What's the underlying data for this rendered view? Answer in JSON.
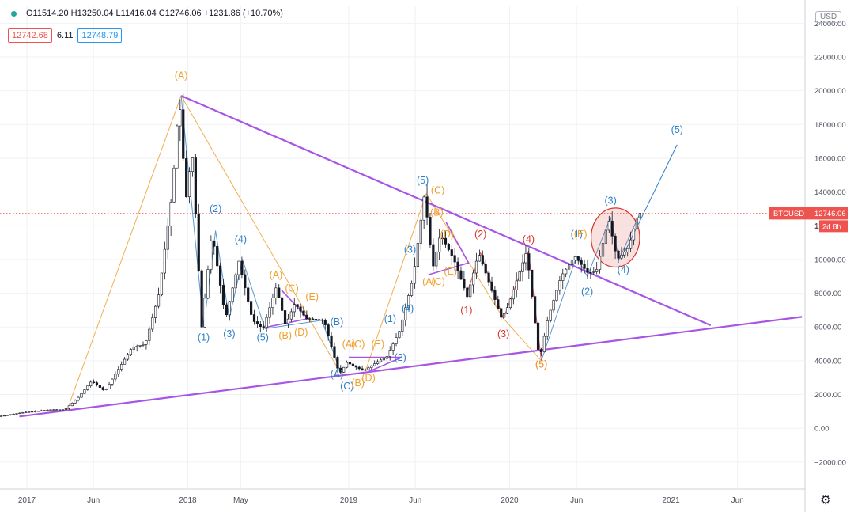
{
  "header": {
    "ohlc": "O11514.20  H13250.04  L11416.04  C12746.06  +1231.86 (+10.70%)",
    "bid": "12742.68",
    "spread": "6.11",
    "ask": "12748.79",
    "currency": "USD"
  },
  "price_tag": {
    "symbol": "BTCUSD",
    "price": "12746.06",
    "countdown": "2d 8h",
    "partial_tick": "12"
  },
  "colors": {
    "candle": "#131722",
    "projection": "#2f80c8",
    "orange": "#f0a030",
    "red": "#d9342b",
    "purple": "#a855e6",
    "price_tag": "#ef5350"
  },
  "icons": {
    "settings": "gear-icon"
  },
  "chart_data": {
    "type": "line",
    "title": "",
    "xlabel": "",
    "ylabel": "",
    "x_axis_ticks": [
      "2017",
      "Jun",
      "2018",
      "May",
      "2019",
      "Jun",
      "2020",
      "Jun",
      "2021",
      "Jun"
    ],
    "y_axis_ticks": [
      "24000.00",
      "22000.00",
      "20000.00",
      "18000.00",
      "16000.00",
      "14000.00",
      "12000.00",
      "10000.00",
      "8000.00",
      "6000.00",
      "4000.00",
      "2000.00",
      "0.00",
      "−2000.00"
    ],
    "ylim": [
      -3600,
      25000
    ],
    "xlim": [
      "2016-11-01",
      "2021-11-01"
    ],
    "grid": true,
    "series": [
      {
        "points": [
          [
            "2016-11-01",
            700
          ],
          [
            "2017-01-01",
            950
          ],
          [
            "2017-03-01",
            1100
          ],
          [
            "2017-04-01",
            1100
          ],
          [
            "2017-05-01",
            1800
          ],
          [
            "2017-06-01",
            2800
          ],
          [
            "2017-07-01",
            2200
          ],
          [
            "2017-08-01",
            3500
          ],
          [
            "2017-09-01",
            4800
          ],
          [
            "2017-10-01",
            5000
          ],
          [
            "2017-11-01",
            8000
          ],
          [
            "2017-12-01",
            14000
          ],
          [
            "2017-12-17",
            19700
          ],
          [
            "2018-01-01",
            13500
          ],
          [
            "2018-01-15",
            16500
          ],
          [
            "2018-02-06",
            6000
          ],
          [
            "2018-03-01",
            11600
          ],
          [
            "2018-04-01",
            6500
          ],
          [
            "2018-05-01",
            9900
          ],
          [
            "2018-06-01",
            6400
          ],
          [
            "2018-06-25",
            5900
          ],
          [
            "2018-07-25",
            8400
          ],
          [
            "2018-08-15",
            6100
          ],
          [
            "2018-09-05",
            7400
          ],
          [
            "2018-10-01",
            6500
          ],
          [
            "2018-11-10",
            6400
          ],
          [
            "2018-12-15",
            3200
          ],
          [
            "2019-01-01",
            3900
          ],
          [
            "2019-02-08",
            3400
          ],
          [
            "2019-03-15",
            4000
          ],
          [
            "2019-04-01",
            4200
          ],
          [
            "2019-05-01",
            5800
          ],
          [
            "2019-06-01",
            9000
          ],
          [
            "2019-06-26",
            13900
          ],
          [
            "2019-07-15",
            9500
          ],
          [
            "2019-08-01",
            11500
          ],
          [
            "2019-09-01",
            10000
          ],
          [
            "2019-10-01",
            7800
          ],
          [
            "2019-10-27",
            10400
          ],
          [
            "2019-12-18",
            6500
          ],
          [
            "2020-01-01",
            7200
          ],
          [
            "2020-02-13",
            10500
          ],
          [
            "2020-03-13",
            4000
          ],
          [
            "2020-04-01",
            6500
          ],
          [
            "2020-05-01",
            9000
          ],
          [
            "2020-06-01",
            10200
          ],
          [
            "2020-07-01",
            9200
          ],
          [
            "2020-07-20",
            9300
          ],
          [
            "2020-08-17",
            12400
          ],
          [
            "2020-09-05",
            10000
          ],
          [
            "2020-09-20",
            10400
          ],
          [
            "2020-10-01",
            10700
          ],
          [
            "2020-10-23",
            12750
          ]
        ]
      }
    ],
    "trendlines": {
      "upper_purple": [
        [
          "2017-12-17",
          19700
        ],
        [
          "2021-04-01",
          6100
        ]
      ],
      "lower_purple": [
        [
          "2016-12-15",
          700
        ],
        [
          "2021-10-25",
          6600
        ]
      ],
      "projection_blue": [
        [
          "2020-09-10",
          10000
        ],
        [
          "2021-01-15",
          16800
        ]
      ],
      "orange_zigzag_large": [
        [
          "2017-04-01",
          1000
        ],
        [
          "2017-12-17",
          19700
        ],
        [
          "2018-12-15",
          3200
        ]
      ],
      "orange_zigzag_2019": [
        [
          "2019-02-08",
          3400
        ],
        [
          "2019-06-26",
          13900
        ],
        [
          "2019-12-18",
          6500
        ],
        [
          "2020-03-13",
          4000
        ]
      ],
      "red_zigzag_2019_2020": [
        [
          "2019-09-25",
          7900
        ],
        [
          "2019-10-27",
          10400
        ],
        [
          "2019-12-18",
          6500
        ],
        [
          "2020-02-13",
          10500
        ],
        [
          "2020-03-13",
          4000
        ]
      ],
      "blue_primary": [
        [
          "2017-12-17",
          19700
        ],
        [
          "2018-02-06",
          6000
        ],
        [
          "2018-03-05",
          11700
        ],
        [
          "2018-04-05",
          6500
        ],
        [
          "2018-05-05",
          10000
        ],
        [
          "2018-06-25",
          5900
        ],
        [
          "2018-11-01",
          6400
        ],
        [
          "2018-12-15",
          3200
        ]
      ],
      "blue_primary_2020": [
        [
          "2020-03-13",
          4000
        ],
        [
          "2020-06-01",
          10200
        ],
        [
          "2020-06-25",
          9000
        ],
        [
          "2020-08-17",
          12500
        ],
        [
          "2020-09-05",
          10000
        ],
        [
          "2020-10-23",
          12750
        ]
      ],
      "triangle_2018": [
        [
          "2018-07-01",
          6000
        ],
        [
          "2018-10-01",
          6500
        ],
        [
          "2018-08-01",
          8200
        ]
      ],
      "triangle_2019": [
        [
          "2019-02-10",
          3300
        ],
        [
          "2019-05-01",
          4200
        ],
        [
          "2019-01-01",
          4200
        ]
      ],
      "triangle_2019b": [
        [
          "2019-07-01",
          9100
        ],
        [
          "2019-09-30",
          9800
        ],
        [
          "2019-08-10",
          12200
        ]
      ]
    },
    "highlight_ellipse": {
      "center": [
        "2020-08-28",
        11300
      ],
      "rx_days": 55,
      "ry_value": 1750
    },
    "price_line": 12746.06,
    "annotations": [
      {
        "text": "(A)",
        "x": "2017-12-17",
        "y": 20700,
        "color": "orange"
      },
      {
        "text": "(1)",
        "x": "2018-02-06",
        "y": 5200,
        "color": "blue"
      },
      {
        "text": "(2)",
        "x": "2018-03-05",
        "y": 12800,
        "color": "blue"
      },
      {
        "text": "(3)",
        "x": "2018-04-05",
        "y": 5400,
        "color": "blue"
      },
      {
        "text": "(4)",
        "x": "2018-05-01",
        "y": 11000,
        "color": "blue"
      },
      {
        "text": "(5)",
        "x": "2018-06-20",
        "y": 5200,
        "color": "blue"
      },
      {
        "text": "(A)",
        "x": "2018-07-20",
        "y": 8900,
        "color": "orange"
      },
      {
        "text": "(B)",
        "x": "2018-08-10",
        "y": 5300,
        "color": "orange"
      },
      {
        "text": "(C)",
        "x": "2018-08-25",
        "y": 8100,
        "color": "orange"
      },
      {
        "text": "(D)",
        "x": "2018-09-15",
        "y": 5500,
        "color": "orange"
      },
      {
        "text": "(E)",
        "x": "2018-10-10",
        "y": 7600,
        "color": "orange"
      },
      {
        "text": "(B)",
        "x": "2018-12-05",
        "y": 6100,
        "color": "blue"
      },
      {
        "text": "(A)",
        "x": "2018-12-05",
        "y": 3000,
        "color": "blue"
      },
      {
        "text": "(C)",
        "x": "2018-12-28",
        "y": 2300,
        "color": "blue"
      },
      {
        "text": "(A)",
        "x": "2019-01-01",
        "y": 4800,
        "color": "orange"
      },
      {
        "text": "(C)",
        "x": "2019-01-22",
        "y": 4800,
        "color": "orange"
      },
      {
        "text": "(B)",
        "x": "2019-01-22",
        "y": 2500,
        "color": "orange"
      },
      {
        "text": "(D)",
        "x": "2019-02-15",
        "y": 2800,
        "color": "orange"
      },
      {
        "text": "(E)",
        "x": "2019-03-08",
        "y": 4800,
        "color": "orange"
      },
      {
        "text": "(2)",
        "x": "2019-04-28",
        "y": 4000,
        "color": "blue"
      },
      {
        "text": "(1)",
        "x": "2019-04-05",
        "y": 6300,
        "color": "blue"
      },
      {
        "text": "(4)",
        "x": "2019-05-15",
        "y": 6900,
        "color": "blue"
      },
      {
        "text": "(3)",
        "x": "2019-05-20",
        "y": 10400,
        "color": "blue"
      },
      {
        "text": "(5)",
        "x": "2019-06-18",
        "y": 14500,
        "color": "blue"
      },
      {
        "text": "(C)",
        "x": "2019-07-22",
        "y": 13900,
        "color": "orange"
      },
      {
        "text": "(B)",
        "x": "2019-07-20",
        "y": 12600,
        "color": "orange"
      },
      {
        "text": "(D)",
        "x": "2019-08-12",
        "y": 11300,
        "color": "orange"
      },
      {
        "text": "(A)",
        "x": "2019-07-02",
        "y": 8500,
        "color": "orange"
      },
      {
        "text": "(C)",
        "x": "2019-07-23",
        "y": 8500,
        "color": "orange"
      },
      {
        "text": "(E)",
        "x": "2019-08-20",
        "y": 9100,
        "color": "orange"
      },
      {
        "text": "(2)",
        "x": "2019-10-27",
        "y": 11300,
        "color": "red"
      },
      {
        "text": "(1)",
        "x": "2019-09-25",
        "y": 6800,
        "color": "red"
      },
      {
        "text": "(3)",
        "x": "2019-12-18",
        "y": 5400,
        "color": "red"
      },
      {
        "text": "(4)",
        "x": "2020-02-13",
        "y": 11000,
        "color": "red"
      },
      {
        "text": "(5)",
        "x": "2020-03-13",
        "y": 3600,
        "color": "red"
      },
      {
        "text": "(5)",
        "x": "2020-03-13",
        "y": 3600,
        "color": "orange"
      },
      {
        "text": "(1)",
        "x": "2020-06-01",
        "y": 11300,
        "color": "blue"
      },
      {
        "text": "(E)",
        "x": "2020-06-10",
        "y": 11300,
        "color": "orange"
      },
      {
        "text": "(2)",
        "x": "2020-06-25",
        "y": 7900,
        "color": "blue"
      },
      {
        "text": "(3)",
        "x": "2020-08-17",
        "y": 13300,
        "color": "blue"
      },
      {
        "text": "(4)",
        "x": "2020-09-15",
        "y": 9200,
        "color": "blue"
      },
      {
        "text": "(5)",
        "x": "2021-01-15",
        "y": 17500,
        "color": "blue"
      }
    ]
  }
}
